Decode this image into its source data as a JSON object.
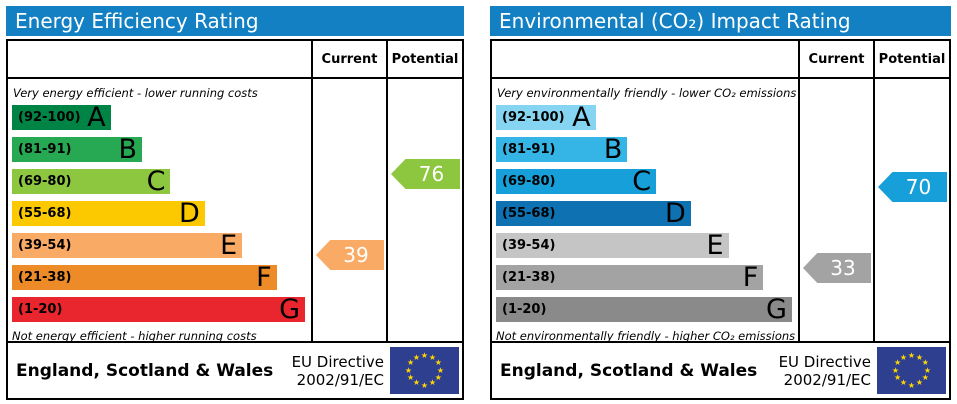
{
  "chart_data": [
    {
      "type": "bar",
      "title": "Energy Efficiency Rating",
      "categories": [
        "A",
        "B",
        "C",
        "D",
        "E",
        "F",
        "G"
      ],
      "band_ranges": [
        "92-100",
        "81-91",
        "69-80",
        "55-68",
        "39-54",
        "21-38",
        "1-20"
      ],
      "series": [
        {
          "name": "Current",
          "values": [
            39
          ],
          "band": "E"
        },
        {
          "name": "Potential",
          "values": [
            76
          ],
          "band": "C"
        }
      ],
      "scale": [
        1,
        100
      ],
      "top_note": "Very energy efficient - lower running costs",
      "bottom_note": "Not energy efficient - higher running costs",
      "region": "England, Scotland & Wales",
      "directive": "EU Directive 2002/91/EC"
    },
    {
      "type": "bar",
      "title": "Environmental (CO₂) Impact Rating",
      "categories": [
        "A",
        "B",
        "C",
        "D",
        "E",
        "F",
        "G"
      ],
      "band_ranges": [
        "92-100",
        "81-91",
        "69-80",
        "55-68",
        "39-54",
        "21-38",
        "1-20"
      ],
      "series": [
        {
          "name": "Current",
          "values": [
            33
          ],
          "band": "F"
        },
        {
          "name": "Potential",
          "values": [
            70
          ],
          "band": "C"
        }
      ],
      "scale": [
        1,
        100
      ],
      "top_note": "Very environmentally friendly - lower CO₂ emissions",
      "bottom_note": "Not environmentally friendly - higher CO₂ emissions",
      "region": "England, Scotland & Wales",
      "directive": "EU Directive 2002/91/EC"
    }
  ],
  "panels": [
    {
      "title": "Energy Efficiency Rating",
      "header_bg": "#1380c4",
      "col_current": "Current",
      "col_potential": "Potential",
      "top_note": "Very energy efficient - lower running costs",
      "bottom_note": "Not energy efficient - higher running costs",
      "bands": [
        {
          "range": "(92-100)",
          "letter": "A",
          "color": "#008445",
          "width_pct": 33
        },
        {
          "range": "(81-91)",
          "letter": "B",
          "color": "#27a853",
          "width_pct": 43.5
        },
        {
          "range": "(69-80)",
          "letter": "C",
          "color": "#8dc63f",
          "width_pct": 53
        },
        {
          "range": "(55-68)",
          "letter": "D",
          "color": "#fcc900",
          "width_pct": 64.5
        },
        {
          "range": "(39-54)",
          "letter": "E",
          "color": "#f9ab65",
          "width_pct": 77
        },
        {
          "range": "(21-38)",
          "letter": "F",
          "color": "#ee8b29",
          "width_pct": 88.5
        },
        {
          "range": "(1-20)",
          "letter": "G",
          "color": "#e9262d",
          "width_pct": 98
        }
      ],
      "current": {
        "value": 39,
        "color": "#f9ab65"
      },
      "potential": {
        "value": 76,
        "color": "#8dc63f"
      },
      "footer_region": "England, Scotland & Wales",
      "directive_line1": "EU Directive",
      "directive_line2": "2002/91/EC"
    },
    {
      "title": "Environmental (CO₂) Impact Rating",
      "header_bg": "#1380c4",
      "col_current": "Current",
      "col_potential": "Potential",
      "top_note": "Very environmentally friendly - lower CO₂ emissions",
      "bottom_note": "Not environmentally friendly - higher CO₂ emissions",
      "bands": [
        {
          "range": "(92-100)",
          "letter": "A",
          "color": "#85d4f1",
          "width_pct": 33
        },
        {
          "range": "(81-91)",
          "letter": "B",
          "color": "#35b5e5",
          "width_pct": 43.5
        },
        {
          "range": "(69-80)",
          "letter": "C",
          "color": "#169fd8",
          "width_pct": 53
        },
        {
          "range": "(55-68)",
          "letter": "D",
          "color": "#0d71b2",
          "width_pct": 64.5
        },
        {
          "range": "(39-54)",
          "letter": "E",
          "color": "#c6c5c5",
          "width_pct": 77
        },
        {
          "range": "(21-38)",
          "letter": "F",
          "color": "#a3a3a3",
          "width_pct": 88.5
        },
        {
          "range": "(1-20)",
          "letter": "G",
          "color": "#8a8a8a",
          "width_pct": 98
        }
      ],
      "current": {
        "value": 33,
        "color": "#a3a3a3"
      },
      "potential": {
        "value": 70,
        "color": "#169fd8"
      },
      "footer_region": "England, Scotland & Wales",
      "directive_line1": "EU Directive",
      "directive_line2": "2002/91/EC"
    }
  ],
  "flag": {
    "field_color": "#2e3f8f",
    "star_color": "#ffd700",
    "star_count": 12
  }
}
